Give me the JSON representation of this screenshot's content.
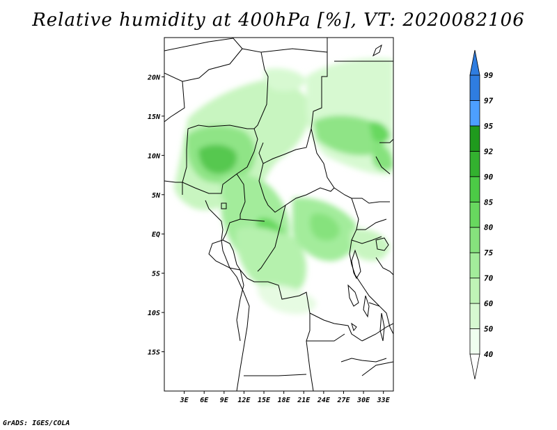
{
  "title": "Relative humidity at 400hPa [%], VT: 2020082106",
  "footer": "GrADS: IGES/COLA",
  "map": {
    "lat_labels": [
      "20N",
      "15N",
      "10N",
      "5N",
      "EQ",
      "5S",
      "10S",
      "15S"
    ],
    "lat_values": [
      20,
      15,
      10,
      5,
      0,
      -5,
      -10,
      -15
    ],
    "lon_labels": [
      "3E",
      "6E",
      "9E",
      "12E",
      "15E",
      "18E",
      "21E",
      "24E",
      "27E",
      "30E",
      "33E"
    ],
    "lon_values": [
      3,
      6,
      9,
      12,
      15,
      18,
      21,
      24,
      27,
      30,
      33
    ],
    "lon_range": [
      0,
      34.5
    ],
    "lat_range": [
      -20,
      25
    ]
  },
  "colorbar": {
    "levels": [
      "40",
      "50",
      "60",
      "70",
      "75",
      "80",
      "85",
      "90",
      "92",
      "95",
      "97",
      "99"
    ],
    "colors": [
      "#f0fff0",
      "#d7f9d1",
      "#bff3b6",
      "#a3ec9b",
      "#86e27d",
      "#68d85f",
      "#4ccb46",
      "#33b12f",
      "#1f9a1d",
      "#4d9fff",
      "#2f7de0",
      "#2060c0"
    ],
    "top_arrow_color": "#2f7de0",
    "bottom_arrow_color": "#ffffff"
  }
}
